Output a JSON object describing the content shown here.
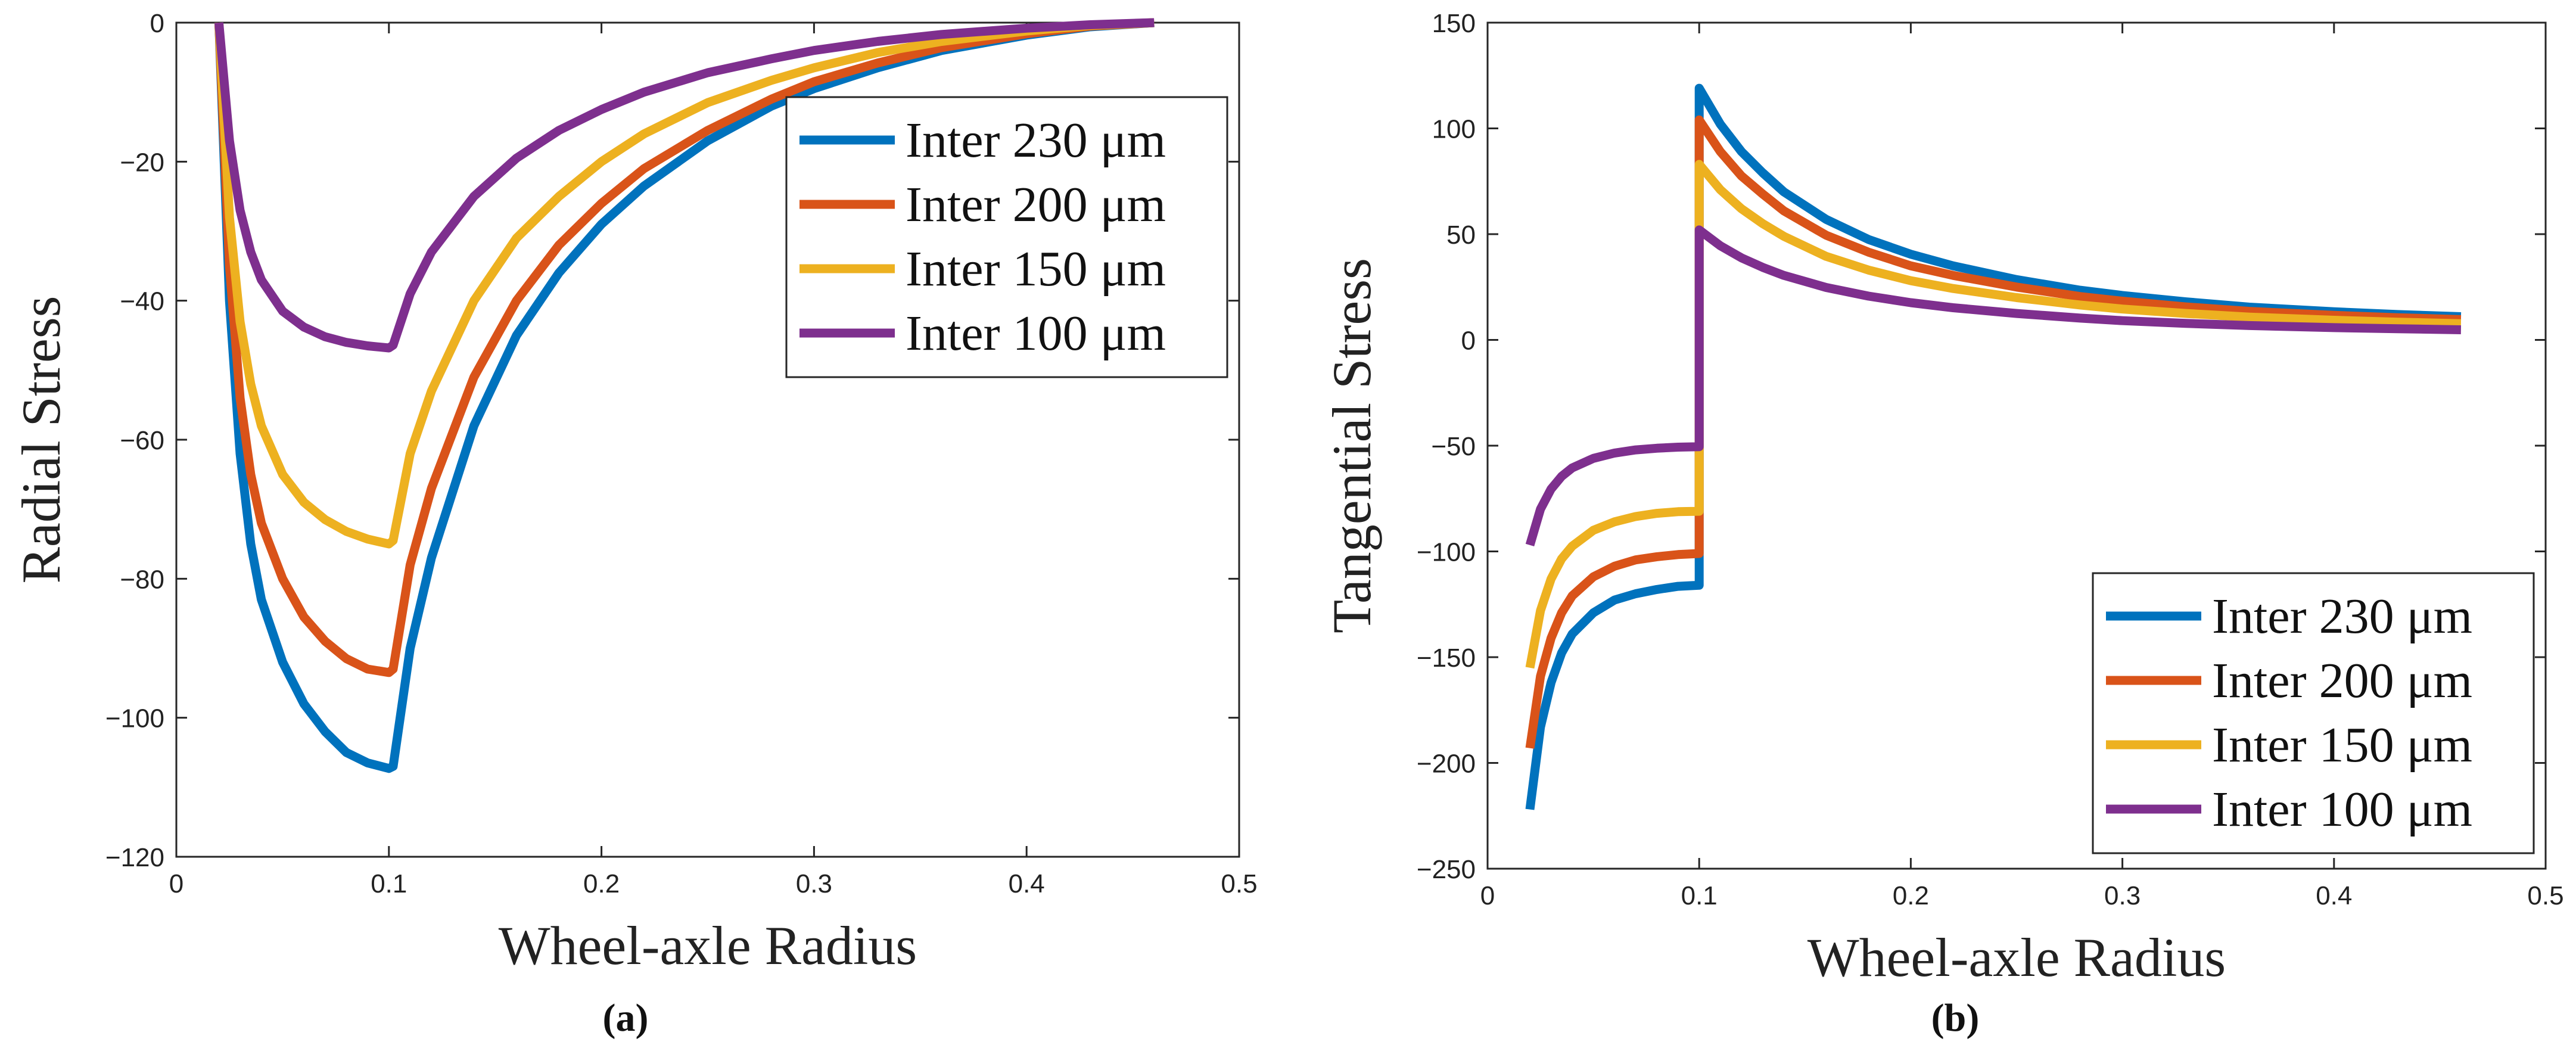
{
  "chart_data": [
    {
      "id": "a",
      "type": "line",
      "caption": "(a)",
      "xlabel": "Wheel-axle Radius",
      "ylabel": "Radial Stress",
      "xlim": [
        0,
        0.5
      ],
      "ylim": [
        -120,
        0
      ],
      "xticks": [
        0,
        0.1,
        0.2,
        0.3,
        0.4,
        0.5
      ],
      "xtick_labels": [
        "0",
        "0.1",
        "0.2",
        "0.3",
        "0.4",
        "0.5"
      ],
      "yticks": [
        0,
        -20,
        -40,
        -60,
        -80,
        -100,
        -120
      ],
      "ytick_labels": [
        "0",
        "−20",
        "−40",
        "−60",
        "−80",
        "−100",
        "−120"
      ],
      "legend_position": "top-right",
      "series": [
        {
          "name": "Inter 230 μm",
          "color": "#0072BD",
          "points": [
            [
              0.02,
              0
            ],
            [
              0.025,
              -40
            ],
            [
              0.03,
              -62
            ],
            [
              0.035,
              -75
            ],
            [
              0.04,
              -83
            ],
            [
              0.05,
              -92
            ],
            [
              0.06,
              -98
            ],
            [
              0.07,
              -102
            ],
            [
              0.08,
              -105
            ],
            [
              0.09,
              -106.5
            ],
            [
              0.1,
              -107.3
            ],
            [
              0.102,
              -107
            ],
            [
              0.11,
              -90
            ],
            [
              0.12,
              -77
            ],
            [
              0.14,
              -58
            ],
            [
              0.16,
              -45
            ],
            [
              0.18,
              -36
            ],
            [
              0.2,
              -29
            ],
            [
              0.22,
              -23.5
            ],
            [
              0.25,
              -17
            ],
            [
              0.28,
              -12
            ],
            [
              0.3,
              -9.5
            ],
            [
              0.33,
              -6.5
            ],
            [
              0.36,
              -4
            ],
            [
              0.4,
              -1.8
            ],
            [
              0.43,
              -0.6
            ],
            [
              0.46,
              0
            ]
          ]
        },
        {
          "name": "Inter 200 μm",
          "color": "#D95319",
          "points": [
            [
              0.02,
              0
            ],
            [
              0.025,
              -35
            ],
            [
              0.03,
              -54
            ],
            [
              0.035,
              -65
            ],
            [
              0.04,
              -72
            ],
            [
              0.05,
              -80
            ],
            [
              0.06,
              -85.5
            ],
            [
              0.07,
              -89
            ],
            [
              0.08,
              -91.5
            ],
            [
              0.09,
              -93
            ],
            [
              0.1,
              -93.5
            ],
            [
              0.102,
              -93
            ],
            [
              0.11,
              -78
            ],
            [
              0.12,
              -67
            ],
            [
              0.14,
              -51
            ],
            [
              0.16,
              -40
            ],
            [
              0.18,
              -32
            ],
            [
              0.2,
              -26
            ],
            [
              0.22,
              -21
            ],
            [
              0.25,
              -15.5
            ],
            [
              0.28,
              -11
            ],
            [
              0.3,
              -8.5
            ],
            [
              0.33,
              -5.8
            ],
            [
              0.36,
              -3.6
            ],
            [
              0.4,
              -1.6
            ],
            [
              0.43,
              -0.5
            ],
            [
              0.46,
              0
            ]
          ]
        },
        {
          "name": "Inter 150 μm",
          "color": "#EDB120",
          "points": [
            [
              0.02,
              0
            ],
            [
              0.025,
              -28
            ],
            [
              0.03,
              -43
            ],
            [
              0.035,
              -52
            ],
            [
              0.04,
              -58
            ],
            [
              0.05,
              -65
            ],
            [
              0.06,
              -69
            ],
            [
              0.07,
              -71.5
            ],
            [
              0.08,
              -73.2
            ],
            [
              0.09,
              -74.3
            ],
            [
              0.1,
              -75
            ],
            [
              0.102,
              -74.5
            ],
            [
              0.11,
              -62
            ],
            [
              0.12,
              -53
            ],
            [
              0.14,
              -40
            ],
            [
              0.16,
              -31
            ],
            [
              0.18,
              -25
            ],
            [
              0.2,
              -20
            ],
            [
              0.22,
              -16
            ],
            [
              0.25,
              -11.5
            ],
            [
              0.28,
              -8.3
            ],
            [
              0.3,
              -6.5
            ],
            [
              0.33,
              -4.3
            ],
            [
              0.36,
              -2.7
            ],
            [
              0.4,
              -1.2
            ],
            [
              0.43,
              -0.4
            ],
            [
              0.46,
              0
            ]
          ]
        },
        {
          "name": "Inter 100 μm",
          "color": "#7E2F8E",
          "points": [
            [
              0.02,
              0
            ],
            [
              0.025,
              -17
            ],
            [
              0.03,
              -27
            ],
            [
              0.035,
              -33
            ],
            [
              0.04,
              -37
            ],
            [
              0.05,
              -41.5
            ],
            [
              0.06,
              -43.8
            ],
            [
              0.07,
              -45.2
            ],
            [
              0.08,
              -46
            ],
            [
              0.09,
              -46.5
            ],
            [
              0.1,
              -46.8
            ],
            [
              0.102,
              -46.4
            ],
            [
              0.11,
              -39
            ],
            [
              0.12,
              -33
            ],
            [
              0.14,
              -25
            ],
            [
              0.16,
              -19.5
            ],
            [
              0.18,
              -15.5
            ],
            [
              0.2,
              -12.5
            ],
            [
              0.22,
              -10
            ],
            [
              0.25,
              -7.2
            ],
            [
              0.28,
              -5.2
            ],
            [
              0.3,
              -4
            ],
            [
              0.33,
              -2.7
            ],
            [
              0.36,
              -1.7
            ],
            [
              0.4,
              -0.8
            ],
            [
              0.43,
              -0.3
            ],
            [
              0.46,
              0
            ]
          ]
        }
      ]
    },
    {
      "id": "b",
      "type": "line",
      "caption": "(b)",
      "xlabel": "Wheel-axle Radius",
      "ylabel": "Tangential Stress",
      "xlim": [
        0,
        0.5
      ],
      "ylim": [
        -250,
        150
      ],
      "xticks": [
        0,
        0.1,
        0.2,
        0.3,
        0.4,
        0.5
      ],
      "xtick_labels": [
        "0",
        "0.1",
        "0.2",
        "0.3",
        "0.4",
        "0.5"
      ],
      "yticks": [
        150,
        100,
        50,
        0,
        -50,
        -100,
        -150,
        -200,
        -250
      ],
      "ytick_labels": [
        "150",
        "100",
        "50",
        "0",
        "−50",
        "−100",
        "−150",
        "−200",
        "−250"
      ],
      "legend_position": "bottom-right",
      "series": [
        {
          "name": "Inter 230 μm",
          "color": "#0072BD",
          "points": [
            [
              0.02,
              -222
            ],
            [
              0.025,
              -183
            ],
            [
              0.03,
              -162
            ],
            [
              0.035,
              -148
            ],
            [
              0.04,
              -139
            ],
            [
              0.05,
              -129
            ],
            [
              0.06,
              -123
            ],
            [
              0.07,
              -120
            ],
            [
              0.08,
              -118
            ],
            [
              0.09,
              -116.5
            ],
            [
              0.1,
              -116
            ],
            [
              0.1,
              119
            ],
            [
              0.11,
              102
            ],
            [
              0.12,
              89
            ],
            [
              0.13,
              79
            ],
            [
              0.14,
              70
            ],
            [
              0.16,
              57
            ],
            [
              0.18,
              47.5
            ],
            [
              0.2,
              40.5
            ],
            [
              0.22,
              35
            ],
            [
              0.25,
              28.5
            ],
            [
              0.28,
              23.5
            ],
            [
              0.3,
              21
            ],
            [
              0.33,
              18
            ],
            [
              0.36,
              15.5
            ],
            [
              0.4,
              13.3
            ],
            [
              0.43,
              12
            ],
            [
              0.46,
              11
            ]
          ]
        },
        {
          "name": "Inter 200 μm",
          "color": "#D95319",
          "points": [
            [
              0.02,
              -193
            ],
            [
              0.025,
              -159
            ],
            [
              0.03,
              -141
            ],
            [
              0.035,
              -129
            ],
            [
              0.04,
              -121
            ],
            [
              0.05,
              -112
            ],
            [
              0.06,
              -107
            ],
            [
              0.07,
              -104
            ],
            [
              0.08,
              -102.5
            ],
            [
              0.09,
              -101.5
            ],
            [
              0.1,
              -101
            ],
            [
              0.1,
              104
            ],
            [
              0.11,
              89
            ],
            [
              0.12,
              77.5
            ],
            [
              0.13,
              69
            ],
            [
              0.14,
              61
            ],
            [
              0.16,
              49.5
            ],
            [
              0.18,
              41.5
            ],
            [
              0.2,
              35
            ],
            [
              0.22,
              30.5
            ],
            [
              0.25,
              25
            ],
            [
              0.28,
              20.5
            ],
            [
              0.3,
              18.3
            ],
            [
              0.33,
              15.6
            ],
            [
              0.36,
              13.5
            ],
            [
              0.4,
              11.6
            ],
            [
              0.43,
              10.5
            ],
            [
              0.46,
              9.6
            ]
          ]
        },
        {
          "name": "Inter 150 μm",
          "color": "#EDB120",
          "points": [
            [
              0.02,
              -155
            ],
            [
              0.025,
              -128
            ],
            [
              0.03,
              -113
            ],
            [
              0.035,
              -103.5
            ],
            [
              0.04,
              -97.5
            ],
            [
              0.05,
              -90
            ],
            [
              0.06,
              -86
            ],
            [
              0.07,
              -83.5
            ],
            [
              0.08,
              -82
            ],
            [
              0.09,
              -81.2
            ],
            [
              0.1,
              -81
            ],
            [
              0.1,
              83
            ],
            [
              0.11,
              71
            ],
            [
              0.12,
              62
            ],
            [
              0.13,
              55
            ],
            [
              0.14,
              49
            ],
            [
              0.16,
              39.5
            ],
            [
              0.18,
              33
            ],
            [
              0.2,
              28
            ],
            [
              0.22,
              24.3
            ],
            [
              0.25,
              20
            ],
            [
              0.28,
              16.5
            ],
            [
              0.3,
              14.6
            ],
            [
              0.33,
              12.5
            ],
            [
              0.36,
              10.8
            ],
            [
              0.4,
              9.3
            ],
            [
              0.43,
              8.4
            ],
            [
              0.46,
              7.7
            ]
          ]
        },
        {
          "name": "Inter 100 μm",
          "color": "#7E2F8E",
          "points": [
            [
              0.02,
              -97
            ],
            [
              0.025,
              -80
            ],
            [
              0.03,
              -70.5
            ],
            [
              0.035,
              -64.5
            ],
            [
              0.04,
              -60.5
            ],
            [
              0.05,
              -56
            ],
            [
              0.06,
              -53.5
            ],
            [
              0.07,
              -52
            ],
            [
              0.08,
              -51.2
            ],
            [
              0.09,
              -50.7
            ],
            [
              0.1,
              -50.5
            ],
            [
              0.1,
              52
            ],
            [
              0.11,
              44.5
            ],
            [
              0.12,
              38.8
            ],
            [
              0.13,
              34.3
            ],
            [
              0.14,
              30.5
            ],
            [
              0.16,
              24.8
            ],
            [
              0.18,
              20.7
            ],
            [
              0.2,
              17.6
            ],
            [
              0.22,
              15.2
            ],
            [
              0.25,
              12.5
            ],
            [
              0.28,
              10.3
            ],
            [
              0.3,
              9.1
            ],
            [
              0.33,
              7.8
            ],
            [
              0.36,
              6.8
            ],
            [
              0.4,
              5.8
            ],
            [
              0.43,
              5.3
            ],
            [
              0.46,
              4.8
            ]
          ]
        }
      ]
    }
  ]
}
